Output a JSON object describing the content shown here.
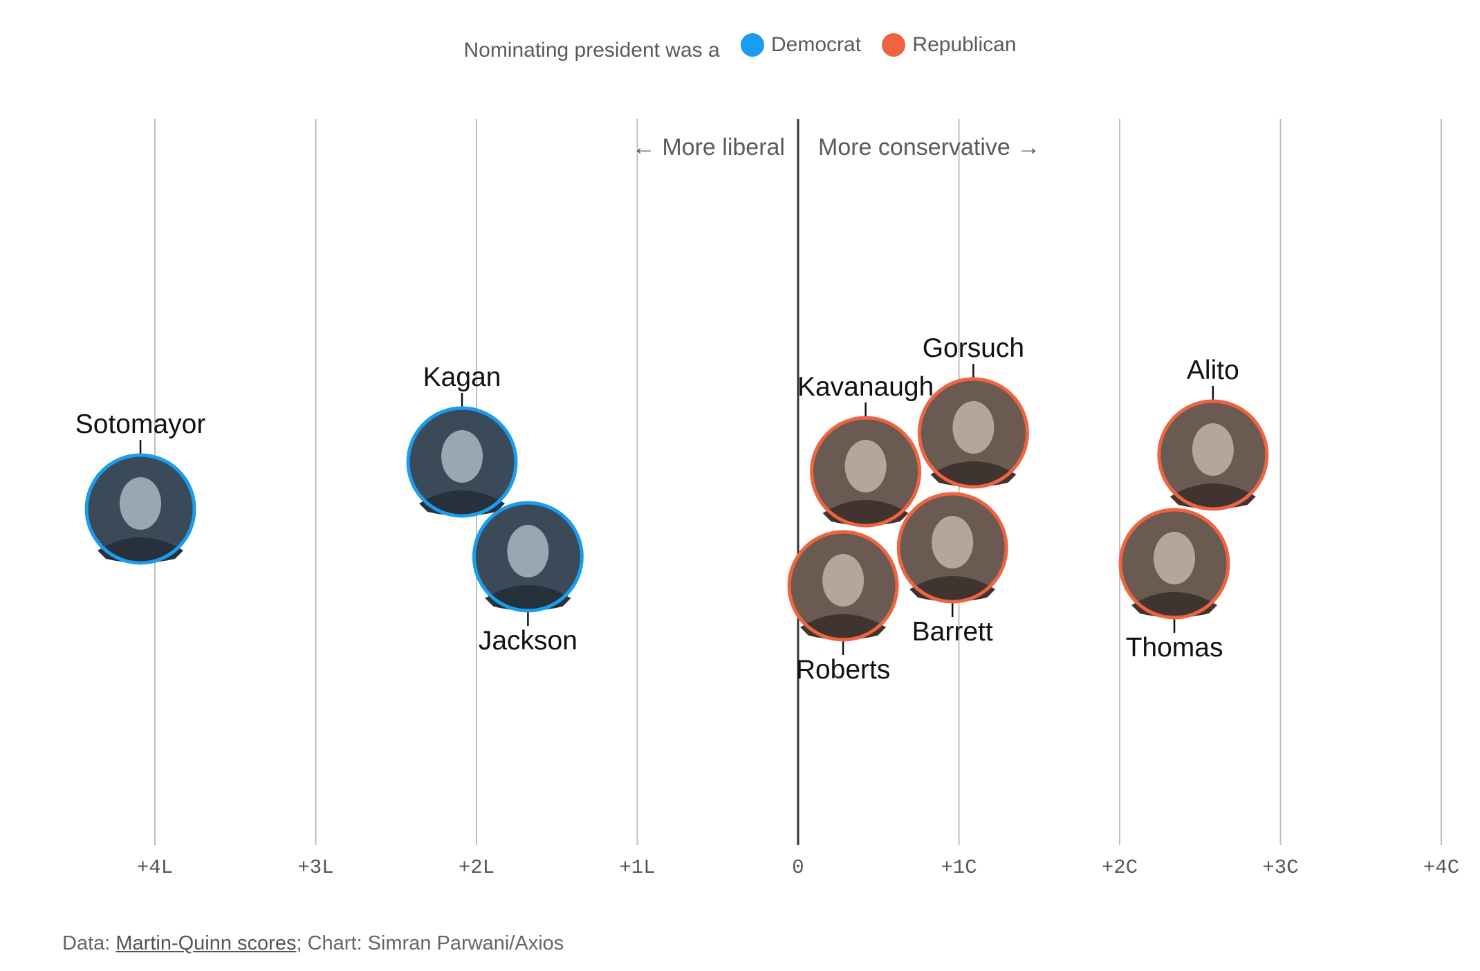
{
  "legend": {
    "prefix": "Nominating president was a",
    "items": [
      {
        "label": "Democrat",
        "color": "#1a9cf0"
      },
      {
        "label": "Republican",
        "color": "#f06340"
      }
    ]
  },
  "annotations": {
    "left": "← More liberal",
    "right": "More conservative →"
  },
  "chart_data": {
    "type": "scatter",
    "title": "",
    "xlabel": "",
    "ylabel": "",
    "x_ticks": [
      {
        "value": -4,
        "label": "+4L"
      },
      {
        "value": -3,
        "label": "+3L"
      },
      {
        "value": -2,
        "label": "+2L"
      },
      {
        "value": -1,
        "label": "+1L"
      },
      {
        "value": 0,
        "label": "0"
      },
      {
        "value": 1,
        "label": "+1C"
      },
      {
        "value": 2,
        "label": "+2C"
      },
      {
        "value": 3,
        "label": "+3C"
      },
      {
        "value": 4,
        "label": "+4C"
      }
    ],
    "xlim": [
      -4,
      4
    ],
    "grid": true,
    "legend_position": "top-center",
    "series": [
      {
        "name": "Democrat",
        "color": "#1a9cf0",
        "points": [
          {
            "label": "Sotomayor",
            "x": -4.09
          },
          {
            "label": "Kagan",
            "x": -2.09
          },
          {
            "label": "Jackson",
            "x": -1.68
          }
        ]
      },
      {
        "name": "Republican",
        "color": "#f06340",
        "points": [
          {
            "label": "Kavanaugh",
            "x": 0.42
          },
          {
            "label": "Gorsuch",
            "x": 1.09
          },
          {
            "label": "Roberts",
            "x": 0.28
          },
          {
            "label": "Barrett",
            "x": 0.96
          },
          {
            "label": "Alito",
            "x": 2.58
          },
          {
            "label": "Thomas",
            "x": 2.34
          }
        ]
      }
    ]
  },
  "source": {
    "prefix": "Data: ",
    "link": "Martin-Quinn scores",
    "suffix": "; Chart: Simran Parwani/Axios"
  }
}
